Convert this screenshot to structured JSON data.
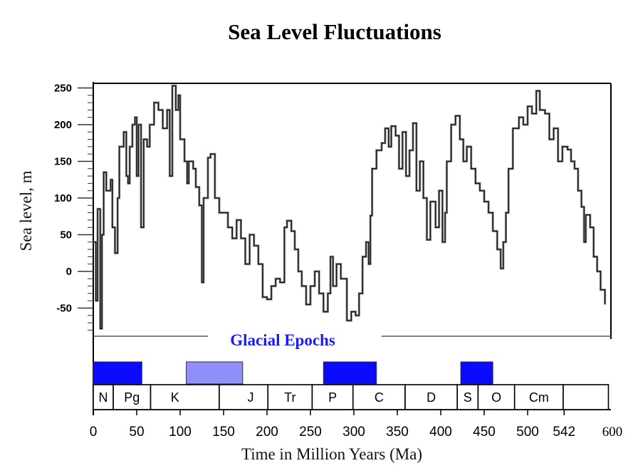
{
  "chart_data": {
    "type": "line",
    "title": "Sea Level Fluctuations",
    "xlabel": "Time in Million Years (Ma)",
    "ylabel": "Sea level, m",
    "xlim": [
      0,
      600
    ],
    "ylim": [
      -90,
      255
    ],
    "x_ticks": [
      0,
      50,
      100,
      150,
      200,
      250,
      300,
      350,
      400,
      450,
      500,
      542,
      600
    ],
    "y_ticks": [
      -50,
      0,
      50,
      100,
      150,
      200,
      250
    ],
    "grid": false,
    "series": [
      {
        "name": "Sea level",
        "color": "#1a1a1a",
        "points": [
          [
            0,
            40
          ],
          [
            3,
            -40
          ],
          [
            5,
            85
          ],
          [
            8,
            -78
          ],
          [
            10,
            50
          ],
          [
            12,
            135
          ],
          [
            15,
            110
          ],
          [
            20,
            125
          ],
          [
            22,
            60
          ],
          [
            25,
            25
          ],
          [
            28,
            100
          ],
          [
            30,
            170
          ],
          [
            35,
            190
          ],
          [
            38,
            130
          ],
          [
            40,
            120
          ],
          [
            42,
            170
          ],
          [
            45,
            200
          ],
          [
            48,
            210
          ],
          [
            50,
            130
          ],
          [
            52,
            200
          ],
          [
            55,
            60
          ],
          [
            58,
            180
          ],
          [
            62,
            170
          ],
          [
            65,
            200
          ],
          [
            70,
            230
          ],
          [
            75,
            220
          ],
          [
            80,
            195
          ],
          [
            85,
            220
          ],
          [
            88,
            130
          ],
          [
            91,
            253
          ],
          [
            95,
            220
          ],
          [
            98,
            240
          ],
          [
            100,
            180
          ],
          [
            105,
            150
          ],
          [
            108,
            120
          ],
          [
            110,
            150
          ],
          [
            115,
            140
          ],
          [
            118,
            115
          ],
          [
            122,
            90
          ],
          [
            125,
            -15
          ],
          [
            127,
            100
          ],
          [
            132,
            155
          ],
          [
            135,
            160
          ],
          [
            140,
            100
          ],
          [
            145,
            80
          ],
          [
            150,
            80
          ],
          [
            155,
            60
          ],
          [
            160,
            45
          ],
          [
            165,
            70
          ],
          [
            170,
            45
          ],
          [
            175,
            10
          ],
          [
            180,
            50
          ],
          [
            185,
            35
          ],
          [
            190,
            10
          ],
          [
            195,
            -35
          ],
          [
            200,
            -38
          ],
          [
            205,
            -20
          ],
          [
            210,
            -10
          ],
          [
            215,
            -15
          ],
          [
            220,
            60
          ],
          [
            223,
            69
          ],
          [
            228,
            55
          ],
          [
            232,
            30
          ],
          [
            236,
            0
          ],
          [
            240,
            -20
          ],
          [
            245,
            -45
          ],
          [
            250,
            -20
          ],
          [
            255,
            0
          ],
          [
            260,
            -30
          ],
          [
            265,
            -55
          ],
          [
            270,
            -30
          ],
          [
            273,
            20
          ],
          [
            276,
            -20
          ],
          [
            280,
            10
          ],
          [
            285,
            -10
          ],
          [
            292,
            -67
          ],
          [
            297,
            -55
          ],
          [
            302,
            -60
          ],
          [
            306,
            -30
          ],
          [
            310,
            20
          ],
          [
            314,
            40
          ],
          [
            317,
            10
          ],
          [
            319,
            76
          ],
          [
            321,
            140
          ],
          [
            326,
            165
          ],
          [
            332,
            175
          ],
          [
            336,
            195
          ],
          [
            340,
            170
          ],
          [
            343,
            198
          ],
          [
            348,
            185
          ],
          [
            352,
            140
          ],
          [
            356,
            190
          ],
          [
            360,
            130
          ],
          [
            364,
            165
          ],
          [
            368,
            202
          ],
          [
            372,
            110
          ],
          [
            376,
            150
          ],
          [
            380,
            100
          ],
          [
            384,
            43
          ],
          [
            388,
            95
          ],
          [
            394,
            60
          ],
          [
            398,
            110
          ],
          [
            402,
            40
          ],
          [
            405,
            80
          ],
          [
            407,
            150
          ],
          [
            412,
            200
          ],
          [
            417,
            212
          ],
          [
            422,
            180
          ],
          [
            426,
            150
          ],
          [
            430,
            170
          ],
          [
            435,
            140
          ],
          [
            440,
            120
          ],
          [
            445,
            110
          ],
          [
            450,
            95
          ],
          [
            455,
            80
          ],
          [
            460,
            55
          ],
          [
            465,
            30
          ],
          [
            469,
            4
          ],
          [
            472,
            40
          ],
          [
            475,
            80
          ],
          [
            478,
            140
          ],
          [
            483,
            195
          ],
          [
            490,
            210
          ],
          [
            495,
            200
          ],
          [
            500,
            225
          ],
          [
            505,
            215
          ],
          [
            510,
            246
          ],
          [
            514,
            220
          ],
          [
            520,
            215
          ],
          [
            525,
            180
          ],
          [
            530,
            195
          ],
          [
            535,
            150
          ],
          [
            540,
            170
          ],
          [
            546,
            166
          ],
          [
            550,
            150
          ],
          [
            554,
            140
          ],
          [
            558,
            110
          ],
          [
            562,
            88
          ],
          [
            565,
            40
          ],
          [
            567,
            77
          ],
          [
            572,
            60
          ],
          [
            576,
            20
          ],
          [
            580,
            0
          ],
          [
            584,
            -25
          ],
          [
            589,
            -45
          ]
        ]
      }
    ],
    "glacial_epochs": {
      "label": "Glacial Epochs",
      "bands": [
        {
          "start": 0,
          "end": 56,
          "color": "#0a0aff"
        },
        {
          "start": 107,
          "end": 172,
          "color": "#9090fa"
        },
        {
          "start": 265,
          "end": 326,
          "color": "#0a0aff"
        },
        {
          "start": 423,
          "end": 460,
          "color": "#0a0aff"
        }
      ]
    },
    "periods": [
      {
        "label": "N",
        "start": 0,
        "end": 23
      },
      {
        "label": "Pg",
        "start": 23,
        "end": 66
      },
      {
        "label": "K",
        "start": 66,
        "end": 145
      },
      {
        "label": "J",
        "start": 145,
        "end": 201
      },
      {
        "label": "Tr",
        "start": 201,
        "end": 252
      },
      {
        "label": "P",
        "start": 252,
        "end": 299
      },
      {
        "label": "C",
        "start": 299,
        "end": 359
      },
      {
        "label": "D",
        "start": 359,
        "end": 419
      },
      {
        "label": "S",
        "start": 419,
        "end": 443
      },
      {
        "label": "O",
        "start": 443,
        "end": 485
      },
      {
        "label": "Cm",
        "start": 485,
        "end": 541
      },
      {
        "label": "",
        "start": 541,
        "end": 593
      }
    ],
    "colors": {
      "glacial_text": "#1a1aff"
    }
  }
}
